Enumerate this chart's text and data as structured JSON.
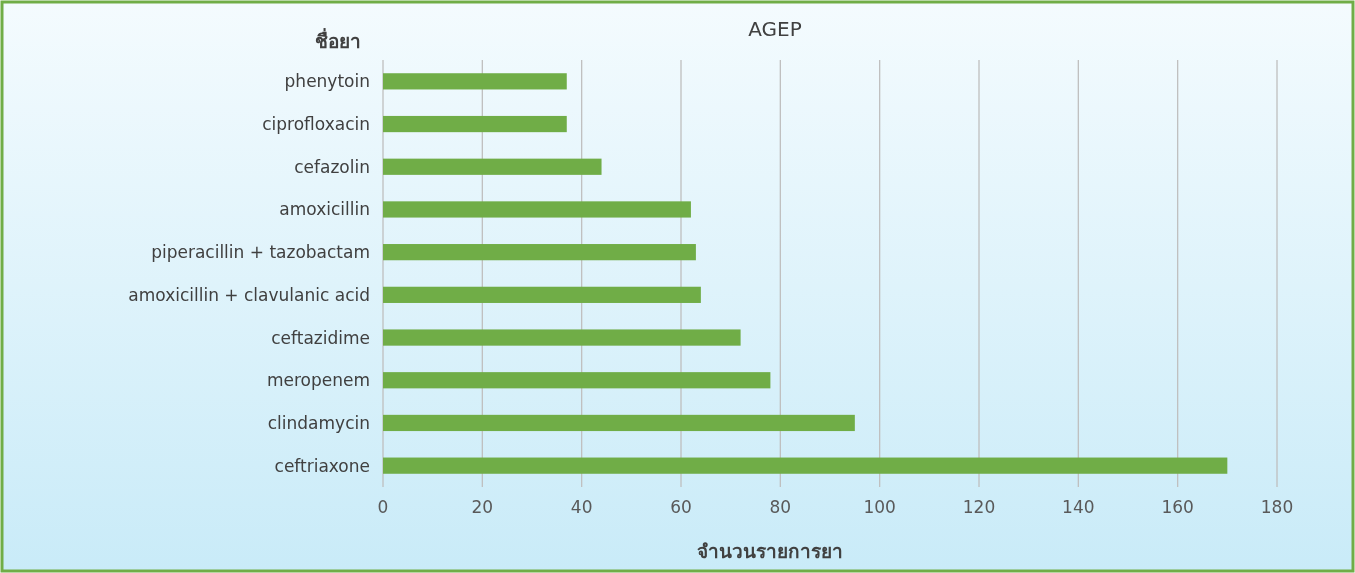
{
  "chart_data": {
    "type": "bar",
    "orientation": "horizontal",
    "title": "AGEP",
    "ylabel": "ชื่อยา",
    "xlabel": "จำนวนรายการยา",
    "categories": [
      "phenytoin",
      "ciprofloxacin",
      "cefazolin",
      "amoxicillin",
      "piperacillin + tazobactam",
      "amoxicillin + clavulanic acid",
      "ceftazidime",
      "meropenem",
      "clindamycin",
      "ceftriaxone"
    ],
    "values": [
      37,
      37,
      44,
      62,
      63,
      64,
      72,
      78,
      95,
      170
    ],
    "color": "#70ad47",
    "xlim": [
      0,
      180
    ],
    "xticks": [
      0,
      20,
      40,
      60,
      80,
      100,
      120,
      140,
      160,
      180
    ],
    "grid": "x"
  }
}
